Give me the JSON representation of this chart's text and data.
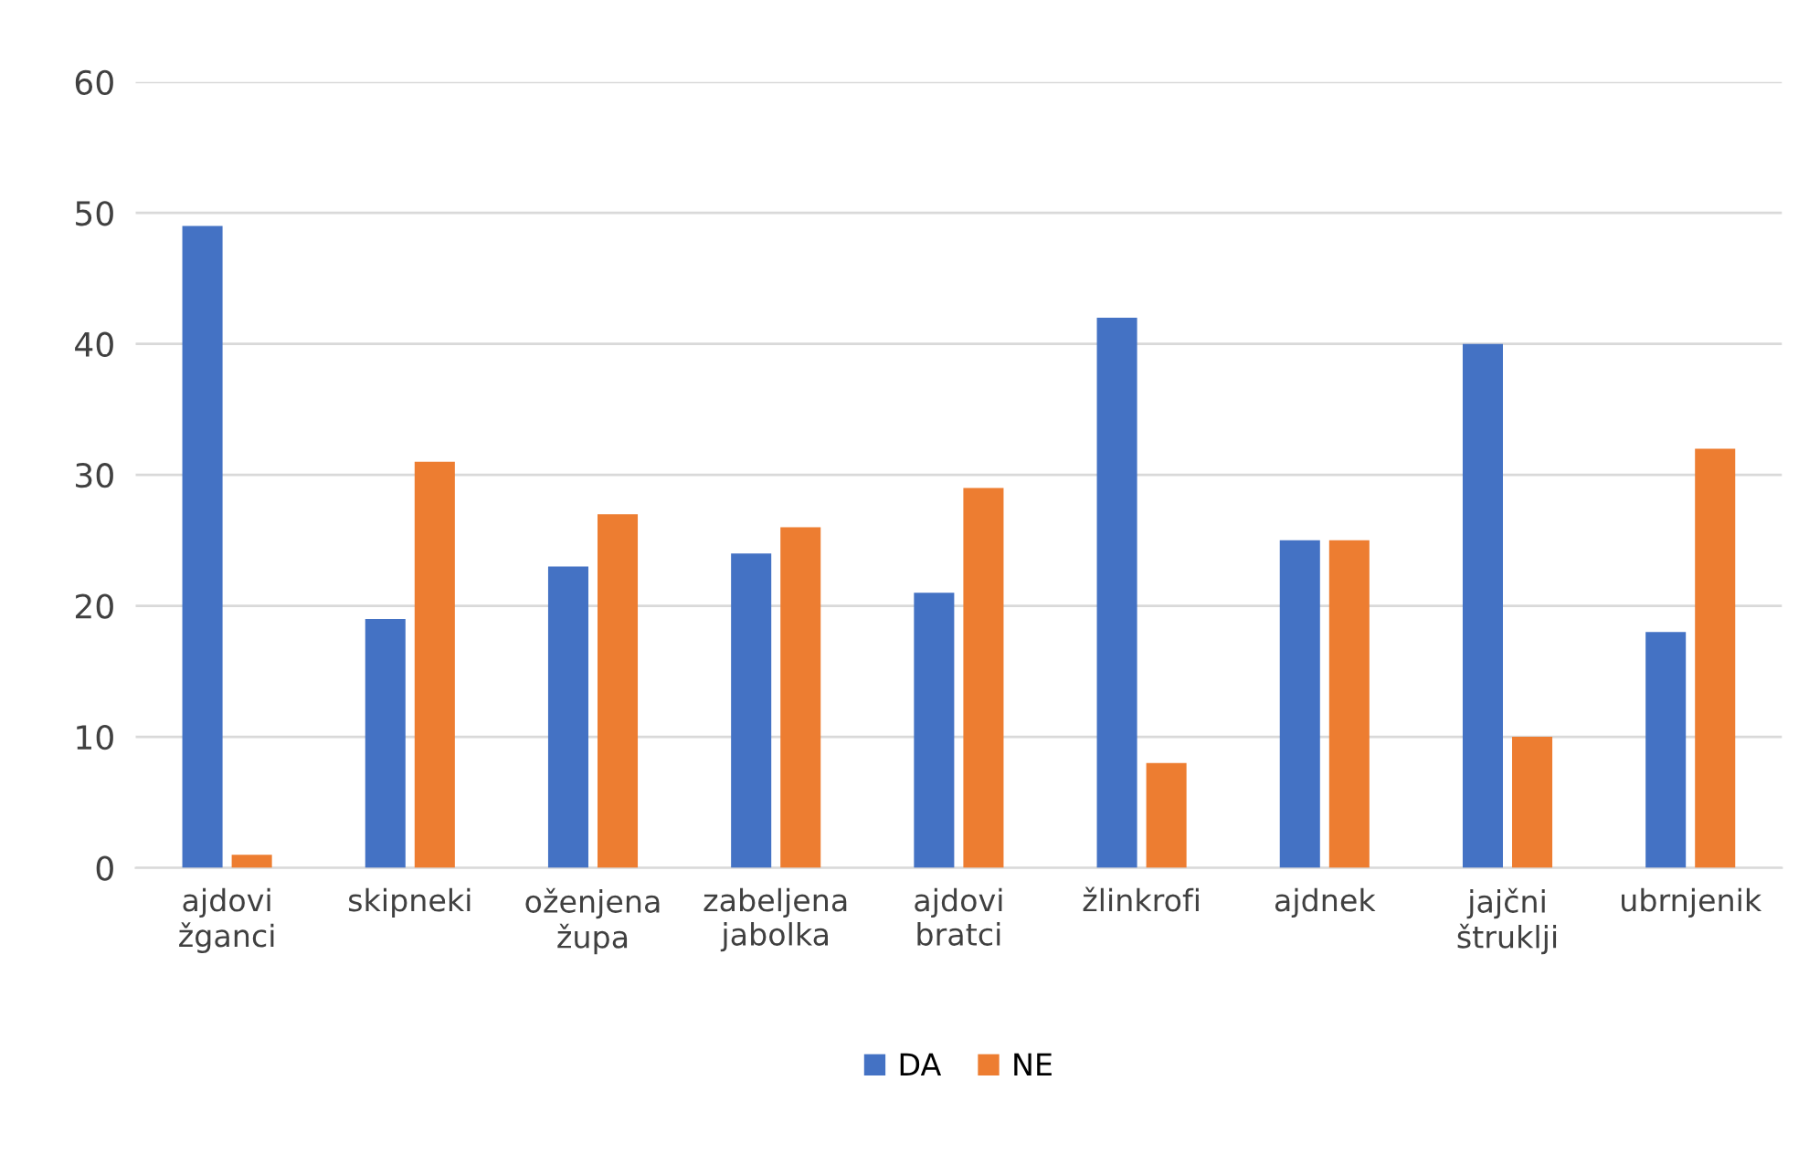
{
  "chart_data": {
    "type": "bar",
    "categories": [
      "ajdovi\nžganci",
      "skipneki",
      "oženjena\nžupa",
      "zabeljena\njabolka",
      "ajdovi\nbratci",
      "žlinkrofi",
      "ajdnek",
      "jajčni\nštruklji",
      "ubrnjenik"
    ],
    "series": [
      {
        "name": "DA",
        "color": "#4472c4",
        "values": [
          49,
          19,
          23,
          24,
          21,
          42,
          25,
          40,
          18
        ]
      },
      {
        "name": "NE",
        "color": "#ed7d31",
        "values": [
          1,
          31,
          27,
          26,
          29,
          8,
          25,
          10,
          32
        ]
      }
    ],
    "ylim": [
      0,
      60
    ],
    "yticks": [
      0,
      10,
      20,
      30,
      40,
      50,
      60
    ],
    "grid": "y",
    "legend": "bottom"
  }
}
